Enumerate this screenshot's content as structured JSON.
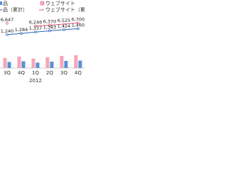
{
  "chart_data": {
    "type": "combo",
    "categories": [
      "3Q",
      "4Q",
      "1Q",
      "2Q",
      "3Q",
      "4Q"
    ],
    "x_group_label": "2012",
    "legend_left": [
      "品",
      "品（累計）"
    ],
    "ylim": [
      0,
      8000
    ],
    "y2lim": [
      0,
      2000
    ],
    "series": [
      {
        "name": "ウェブサイト",
        "type": "bar",
        "color": "#f4a6b8",
        "values": [
          1500,
          1700,
          1400,
          1600,
          1800,
          1900
        ]
      },
      {
        "name": "品",
        "type": "bar",
        "color": "#5b8fd6",
        "values": [
          900,
          1000,
          800,
          950,
          1050,
          1100
        ]
      },
      {
        "name": "ウェブサイト（累計）",
        "type": "line",
        "color": "#e0607e",
        "values": [
          6647,
          null,
          6246,
          6370,
          6525,
          6700
        ],
        "value_labels": [
          "6,647",
          null,
          "6,246",
          "6,370",
          "6,525",
          "6,700"
        ]
      },
      {
        "name": "品（累計）",
        "type": "line",
        "axis": "y2",
        "color": "#2a62b8",
        "values": [
          1240,
          1284,
          1337,
          1383,
          1424,
          1460
        ],
        "value_labels": [
          "1,240",
          "1,284",
          "1,337",
          "1,383",
          "1,424",
          "1,460"
        ]
      }
    ]
  }
}
